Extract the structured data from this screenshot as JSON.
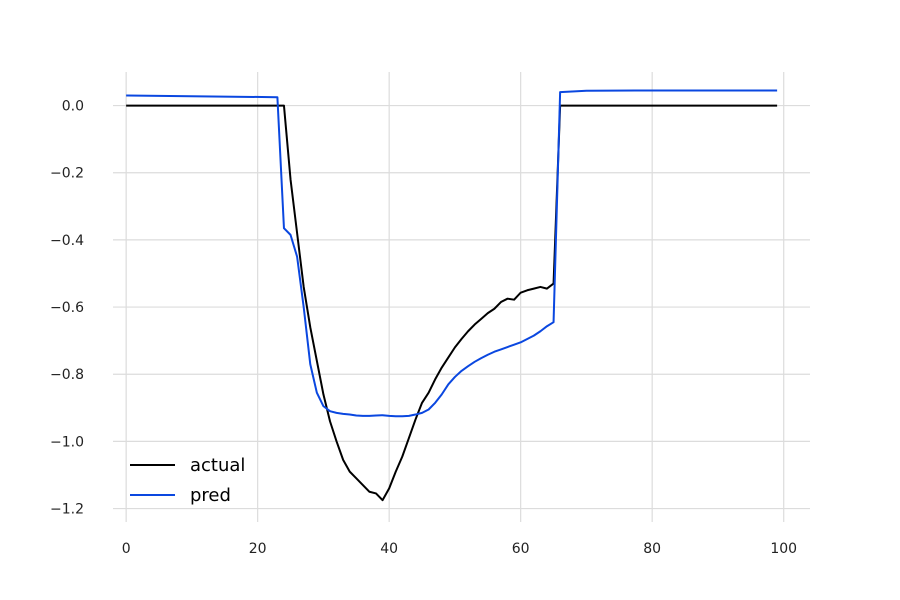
{
  "chart_data": {
    "type": "line",
    "title": "",
    "xlabel": "",
    "ylabel": "",
    "xlim": [
      -2,
      104
    ],
    "ylim": [
      -1.24,
      0.1
    ],
    "xticks": [
      0,
      20,
      40,
      60,
      80,
      100
    ],
    "yticks": [
      0.0,
      -0.2,
      -0.4,
      -0.6,
      -0.8,
      -1.0,
      -1.2
    ],
    "xtick_labels": [
      "0",
      "20",
      "40",
      "60",
      "80",
      "100"
    ],
    "ytick_labels": [
      "0.0",
      "−0.2",
      "−0.4",
      "−0.6",
      "−0.8",
      "−1.0",
      "−1.2"
    ],
    "grid": true,
    "legend_position": "lower-left",
    "series": [
      {
        "name": "actual",
        "color": "#000000",
        "x": [
          0,
          23,
          24,
          25,
          26,
          27,
          28,
          29,
          30,
          31,
          32,
          33,
          34,
          35,
          36,
          37,
          38,
          39,
          40,
          41,
          42,
          43,
          44,
          45,
          46,
          47,
          48,
          49,
          50,
          51,
          52,
          53,
          54,
          55,
          56,
          57,
          58,
          59,
          60,
          61,
          62,
          63,
          64,
          65,
          66,
          67,
          99
        ],
        "y": [
          0.0,
          0.0,
          0.0,
          -0.22,
          -0.38,
          -0.54,
          -0.66,
          -0.76,
          -0.86,
          -0.94,
          -1.0,
          -1.055,
          -1.09,
          -1.11,
          -1.13,
          -1.15,
          -1.155,
          -1.175,
          -1.14,
          -1.09,
          -1.045,
          -0.99,
          -0.935,
          -0.885,
          -0.855,
          -0.815,
          -0.78,
          -0.75,
          -0.72,
          -0.695,
          -0.672,
          -0.652,
          -0.635,
          -0.618,
          -0.605,
          -0.585,
          -0.575,
          -0.578,
          -0.557,
          -0.55,
          -0.545,
          -0.54,
          -0.545,
          -0.53,
          0.0,
          0.0,
          0.0
        ]
      },
      {
        "name": "pred",
        "color": "#0a47e0",
        "x": [
          0,
          23,
          24,
          25,
          26,
          27,
          28,
          29,
          30,
          31,
          32,
          33,
          34,
          35,
          36,
          37,
          38,
          39,
          40,
          41,
          42,
          43,
          44,
          45,
          46,
          47,
          48,
          49,
          50,
          51,
          52,
          53,
          54,
          55,
          56,
          57,
          58,
          59,
          60,
          61,
          62,
          63,
          64,
          65,
          66,
          70,
          80,
          99
        ],
        "y": [
          0.03,
          0.025,
          -0.365,
          -0.385,
          -0.45,
          -0.6,
          -0.77,
          -0.855,
          -0.895,
          -0.91,
          -0.915,
          -0.918,
          -0.92,
          -0.923,
          -0.924,
          -0.924,
          -0.923,
          -0.922,
          -0.924,
          -0.925,
          -0.925,
          -0.924,
          -0.92,
          -0.915,
          -0.905,
          -0.885,
          -0.86,
          -0.83,
          -0.808,
          -0.79,
          -0.776,
          -0.763,
          -0.752,
          -0.742,
          -0.733,
          -0.726,
          -0.719,
          -0.712,
          -0.705,
          -0.695,
          -0.685,
          -0.672,
          -0.657,
          -0.645,
          0.04,
          0.044,
          0.045,
          0.045
        ]
      }
    ]
  }
}
